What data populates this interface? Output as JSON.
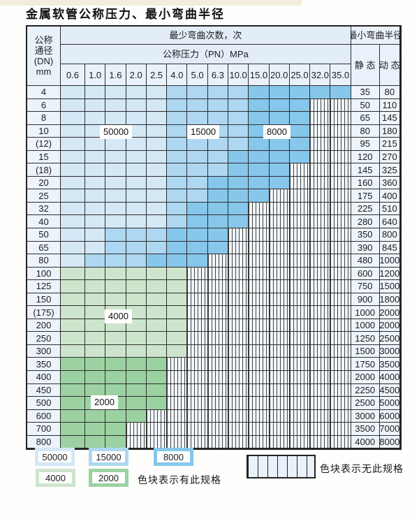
{
  "title": "金属软管公称压力、最小弯曲半径",
  "colors": {
    "zones": {
      "50000": "#d4e8f6",
      "15000": "#aed7f1",
      "8000": "#87c7eb",
      "4000": "#cde5cd",
      "2000": "#9cd2a2"
    },
    "hatch_line": "#454545",
    "header_bg": "#e2edf8",
    "label_cell_bg": "#ecf3fb"
  },
  "table": {
    "header": {
      "dn_lines": [
        "公称",
        "通径",
        "(DN)",
        "mm"
      ],
      "bend_times_label": "最少弯曲次数，次",
      "pressure_label": "公称压力（PN）MPa",
      "radius_label": "最小弯曲半径",
      "static_label": "静 态",
      "dynamic_label": "动 态",
      "pressures": [
        "0.6",
        "1.0",
        "1.6",
        "2.0",
        "2.5",
        "4.0",
        "5.0",
        "6.3",
        "10.0",
        "15.0",
        "20.0",
        "25.0",
        "32.0",
        "35.0"
      ]
    },
    "rows": [
      {
        "dn": "4",
        "static": "35",
        "dynamic": "80",
        "zones": [
          [
            "50000",
            1,
            5
          ],
          [
            "15000",
            6,
            9
          ],
          [
            "8000",
            10,
            14
          ]
        ]
      },
      {
        "dn": "6",
        "static": "50",
        "dynamic": "110",
        "zones": [
          [
            "50000",
            1,
            5
          ],
          [
            "15000",
            6,
            9
          ],
          [
            "8000",
            10,
            12
          ]
        ]
      },
      {
        "dn": "8",
        "static": "65",
        "dynamic": "145",
        "zones": [
          [
            "50000",
            1,
            5
          ],
          [
            "15000",
            6,
            9
          ],
          [
            "8000",
            10,
            12
          ]
        ]
      },
      {
        "dn": "10",
        "static": "80",
        "dynamic": "180",
        "zones": [
          [
            "50000",
            1,
            5
          ],
          [
            "15000",
            6,
            9
          ],
          [
            "8000",
            10,
            12
          ]
        ]
      },
      {
        "dn": "(12)",
        "static": "95",
        "dynamic": "215",
        "zones": [
          [
            "50000",
            1,
            5
          ],
          [
            "15000",
            6,
            9
          ],
          [
            "8000",
            10,
            12
          ]
        ]
      },
      {
        "dn": "15",
        "static": "120",
        "dynamic": "270",
        "zones": [
          [
            "50000",
            1,
            5
          ],
          [
            "15000",
            6,
            8
          ],
          [
            "8000",
            9,
            12
          ]
        ]
      },
      {
        "dn": "(18)",
        "static": "145",
        "dynamic": "325",
        "zones": [
          [
            "50000",
            1,
            5
          ],
          [
            "15000",
            6,
            8
          ],
          [
            "8000",
            9,
            11
          ]
        ]
      },
      {
        "dn": "20",
        "static": "160",
        "dynamic": "360",
        "zones": [
          [
            "50000",
            1,
            5
          ],
          [
            "15000",
            6,
            7
          ],
          [
            "8000",
            8,
            11
          ]
        ]
      },
      {
        "dn": "25",
        "static": "175",
        "dynamic": "400",
        "zones": [
          [
            "50000",
            1,
            5
          ],
          [
            "15000",
            6,
            7
          ],
          [
            "8000",
            8,
            10
          ]
        ]
      },
      {
        "dn": "32",
        "static": "225",
        "dynamic": "510",
        "zones": [
          [
            "50000",
            1,
            5
          ],
          [
            "15000",
            6,
            6
          ],
          [
            "8000",
            7,
            9
          ]
        ]
      },
      {
        "dn": "40",
        "static": "280",
        "dynamic": "640",
        "zones": [
          [
            "50000",
            1,
            5
          ],
          [
            "15000",
            6,
            6
          ],
          [
            "8000",
            7,
            9
          ]
        ]
      },
      {
        "dn": "50",
        "static": "350",
        "dynamic": "800",
        "zones": [
          [
            "50000",
            1,
            2
          ],
          [
            "15000",
            3,
            5
          ],
          [
            "8000",
            6,
            8
          ]
        ]
      },
      {
        "dn": "65",
        "static": "390",
        "dynamic": "845",
        "zones": [
          [
            "50000",
            1,
            2
          ],
          [
            "15000",
            3,
            5
          ],
          [
            "8000",
            6,
            8
          ]
        ]
      },
      {
        "dn": "80",
        "static": "480",
        "dynamic": "1000",
        "zones": [
          [
            "50000",
            1,
            1
          ],
          [
            "15000",
            2,
            4
          ],
          [
            "8000",
            5,
            7
          ]
        ]
      },
      {
        "dn": "100",
        "static": "600",
        "dynamic": "1200",
        "zones": [
          [
            "4000",
            1,
            6
          ]
        ]
      },
      {
        "dn": "125",
        "static": "750",
        "dynamic": "1500",
        "zones": [
          [
            "4000",
            1,
            6
          ]
        ]
      },
      {
        "dn": "150",
        "static": "900",
        "dynamic": "1800",
        "zones": [
          [
            "4000",
            1,
            6
          ]
        ]
      },
      {
        "dn": "(175)",
        "static": "1000",
        "dynamic": "2000",
        "zones": [
          [
            "4000",
            1,
            6
          ]
        ]
      },
      {
        "dn": "200",
        "static": "1000",
        "dynamic": "2000",
        "zones": [
          [
            "4000",
            1,
            6
          ]
        ]
      },
      {
        "dn": "250",
        "static": "1250",
        "dynamic": "2500",
        "zones": [
          [
            "4000",
            1,
            6
          ]
        ]
      },
      {
        "dn": "300",
        "static": "1500",
        "dynamic": "3000",
        "zones": [
          [
            "4000",
            1,
            6
          ]
        ]
      },
      {
        "dn": "350",
        "static": "1750",
        "dynamic": "3500",
        "zones": [
          [
            "2000",
            1,
            5
          ]
        ]
      },
      {
        "dn": "400",
        "static": "2000",
        "dynamic": "4000",
        "zones": [
          [
            "2000",
            1,
            5
          ]
        ]
      },
      {
        "dn": "450",
        "static": "2250",
        "dynamic": "4500",
        "zones": [
          [
            "2000",
            1,
            5
          ]
        ]
      },
      {
        "dn": "500",
        "static": "2500",
        "dynamic": "5000",
        "zones": [
          [
            "2000",
            1,
            5
          ]
        ]
      },
      {
        "dn": "600",
        "static": "3000",
        "dynamic": "6000",
        "zones": [
          [
            "2000",
            1,
            4
          ]
        ]
      },
      {
        "dn": "700",
        "static": "3500",
        "dynamic": "7000",
        "zones": [
          [
            "2000",
            1,
            3
          ]
        ]
      },
      {
        "dn": "800",
        "static": "4000",
        "dynamic": "8000",
        "zones": [
          [
            "2000",
            1,
            3
          ]
        ]
      }
    ]
  },
  "overlay_labels": [
    {
      "text": "50000"
    },
    {
      "text": "15000"
    },
    {
      "text": "8000"
    },
    {
      "text": "4000"
    },
    {
      "text": "2000"
    }
  ],
  "legend": {
    "swatches": [
      {
        "label": "50000",
        "zone": "50000"
      },
      {
        "label": "15000",
        "zone": "15000"
      },
      {
        "label": "8000",
        "zone": "8000"
      },
      {
        "label": "4000",
        "zone": "4000"
      },
      {
        "label": "2000",
        "zone": "2000"
      }
    ],
    "has_spec_text": "色块表示有此规格",
    "no_spec_text": "色块表示无此规格"
  }
}
